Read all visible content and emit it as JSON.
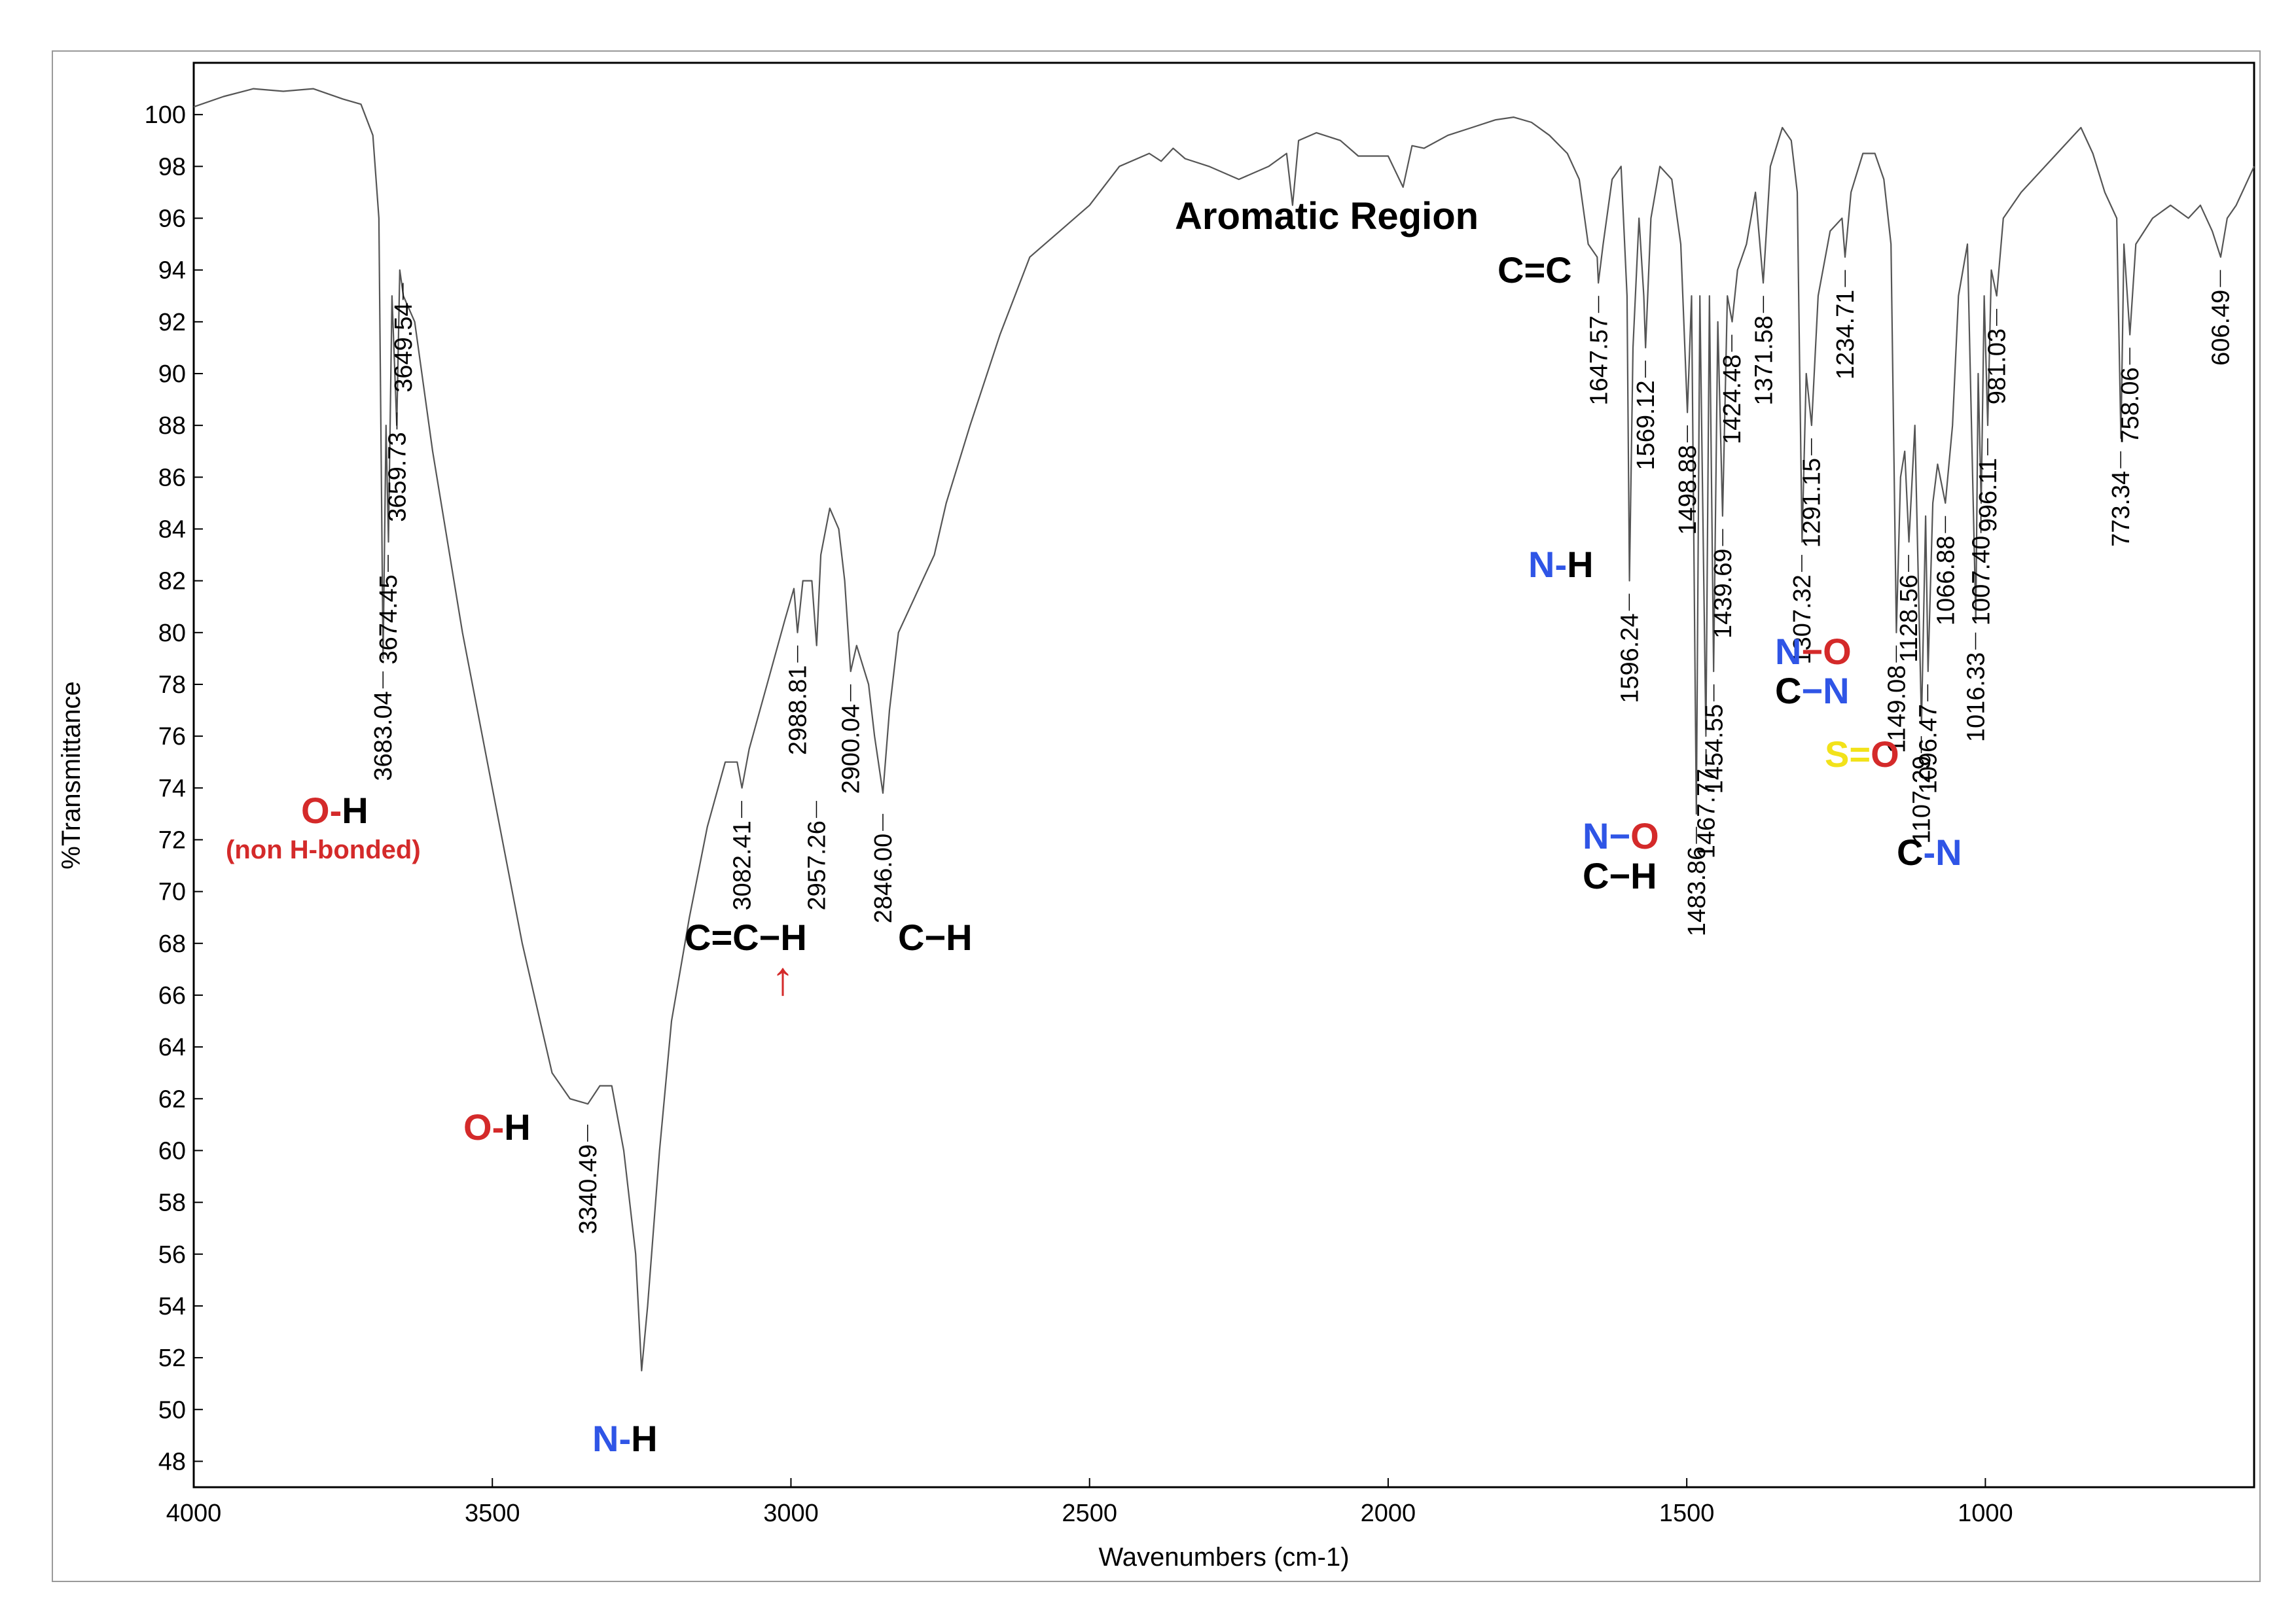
{
  "chart_data": {
    "type": "line",
    "title": "",
    "xlabel": "Wavenumbers (cm-1)",
    "ylabel": "%Transmittance",
    "xlim": [
      4000,
      550
    ],
    "ylim": [
      47,
      102
    ],
    "x_reversed": true,
    "grid": false,
    "x_ticks": [
      4000,
      3500,
      3000,
      2500,
      2000,
      1500,
      1000
    ],
    "y_ticks": [
      48,
      50,
      52,
      54,
      56,
      58,
      60,
      62,
      64,
      66,
      68,
      70,
      72,
      74,
      76,
      78,
      80,
      82,
      84,
      86,
      88,
      90,
      92,
      94,
      96,
      98,
      100
    ],
    "colors": {
      "spectrum": "#555555",
      "red": "#d42a2a",
      "blue": "#2f55e6",
      "yellow": "#f2e21a",
      "black": "#000000"
    },
    "series": [
      {
        "points": [
          [
            4000,
            100.3
          ],
          [
            3950,
            100.7
          ],
          [
            3900,
            101.0
          ],
          [
            3850,
            100.9
          ],
          [
            3800,
            101.0
          ],
          [
            3750,
            100.6
          ],
          [
            3720,
            100.4
          ],
          [
            3700,
            99.2
          ],
          [
            3690,
            96.0
          ],
          [
            3683,
            79.0
          ],
          [
            3678,
            88.0
          ],
          [
            3674,
            83.5
          ],
          [
            3668,
            93.0
          ],
          [
            3660,
            88.0
          ],
          [
            3655,
            94.0
          ],
          [
            3649,
            93.0
          ],
          [
            3630,
            92.0
          ],
          [
            3600,
            87.0
          ],
          [
            3550,
            80.0
          ],
          [
            3500,
            74.0
          ],
          [
            3450,
            68.0
          ],
          [
            3420,
            65.0
          ],
          [
            3400,
            63.0
          ],
          [
            3370,
            62.0
          ],
          [
            3340,
            61.8
          ],
          [
            3320,
            62.5
          ],
          [
            3300,
            62.5
          ],
          [
            3280,
            60.0
          ],
          [
            3260,
            56.0
          ],
          [
            3250,
            51.5
          ],
          [
            3240,
            54.0
          ],
          [
            3220,
            60.0
          ],
          [
            3200,
            65.0
          ],
          [
            3170,
            69.0
          ],
          [
            3140,
            72.5
          ],
          [
            3110,
            75.0
          ],
          [
            3090,
            75.0
          ],
          [
            3082,
            74.0
          ],
          [
            3070,
            75.5
          ],
          [
            3040,
            78.0
          ],
          [
            3010,
            80.5
          ],
          [
            2995,
            81.7
          ],
          [
            2989,
            80.0
          ],
          [
            2980,
            82.0
          ],
          [
            2965,
            82.0
          ],
          [
            2957,
            79.5
          ],
          [
            2950,
            83.0
          ],
          [
            2935,
            84.8
          ],
          [
            2920,
            84.0
          ],
          [
            2910,
            82.0
          ],
          [
            2900,
            78.5
          ],
          [
            2890,
            79.5
          ],
          [
            2870,
            78.0
          ],
          [
            2860,
            76.0
          ],
          [
            2846,
            73.8
          ],
          [
            2835,
            77.0
          ],
          [
            2820,
            80.0
          ],
          [
            2800,
            81.0
          ],
          [
            2780,
            82.0
          ],
          [
            2760,
            83.0
          ],
          [
            2740,
            85.0
          ],
          [
            2700,
            88.0
          ],
          [
            2650,
            91.5
          ],
          [
            2600,
            94.5
          ],
          [
            2550,
            95.5
          ],
          [
            2500,
            96.5
          ],
          [
            2450,
            98.0
          ],
          [
            2400,
            98.5
          ],
          [
            2380,
            98.2
          ],
          [
            2360,
            98.7
          ],
          [
            2340,
            98.3
          ],
          [
            2300,
            98.0
          ],
          [
            2250,
            97.5
          ],
          [
            2200,
            98.0
          ],
          [
            2170,
            98.5
          ],
          [
            2160,
            96.5
          ],
          [
            2150,
            99.0
          ],
          [
            2120,
            99.3
          ],
          [
            2080,
            99.0
          ],
          [
            2050,
            98.4
          ],
          [
            2000,
            98.4
          ],
          [
            1975,
            97.2
          ],
          [
            1960,
            98.8
          ],
          [
            1940,
            98.7
          ],
          [
            1900,
            99.2
          ],
          [
            1860,
            99.5
          ],
          [
            1820,
            99.8
          ],
          [
            1790,
            99.9
          ],
          [
            1760,
            99.7
          ],
          [
            1730,
            99.2
          ],
          [
            1700,
            98.5
          ],
          [
            1680,
            97.5
          ],
          [
            1665,
            95.0
          ],
          [
            1650,
            94.5
          ],
          [
            1648,
            93.5
          ],
          [
            1640,
            95.0
          ],
          [
            1625,
            97.5
          ],
          [
            1610,
            98.0
          ],
          [
            1600,
            93.0
          ],
          [
            1596,
            82.0
          ],
          [
            1590,
            91.0
          ],
          [
            1580,
            96.0
          ],
          [
            1572,
            93.0
          ],
          [
            1569,
            91.0
          ],
          [
            1560,
            96.0
          ],
          [
            1545,
            98.0
          ],
          [
            1525,
            97.5
          ],
          [
            1510,
            95.0
          ],
          [
            1499,
            88.5
          ],
          [
            1492,
            93.0
          ],
          [
            1484,
            73.0
          ],
          [
            1478,
            93.0
          ],
          [
            1468,
            76.0
          ],
          [
            1462,
            93.0
          ],
          [
            1455,
            78.5
          ],
          [
            1448,
            92.0
          ],
          [
            1440,
            84.5
          ],
          [
            1432,
            93.0
          ],
          [
            1424,
            92.0
          ],
          [
            1415,
            94.0
          ],
          [
            1400,
            95.0
          ],
          [
            1385,
            97.0
          ],
          [
            1372,
            93.5
          ],
          [
            1360,
            98.0
          ],
          [
            1340,
            99.5
          ],
          [
            1325,
            99.0
          ],
          [
            1315,
            97.0
          ],
          [
            1307,
            83.5
          ],
          [
            1300,
            90.0
          ],
          [
            1291,
            88.0
          ],
          [
            1280,
            93.0
          ],
          [
            1260,
            95.5
          ],
          [
            1240,
            96.0
          ],
          [
            1235,
            94.5
          ],
          [
            1225,
            97.0
          ],
          [
            1205,
            98.5
          ],
          [
            1185,
            98.5
          ],
          [
            1170,
            97.5
          ],
          [
            1158,
            95.0
          ],
          [
            1149,
            80.0
          ],
          [
            1142,
            86.0
          ],
          [
            1135,
            87.0
          ],
          [
            1128,
            83.5
          ],
          [
            1118,
            88.0
          ],
          [
            1107,
            76.5
          ],
          [
            1100,
            84.5
          ],
          [
            1096,
            78.5
          ],
          [
            1088,
            85.0
          ],
          [
            1080,
            86.5
          ],
          [
            1067,
            85.0
          ],
          [
            1055,
            88.0
          ],
          [
            1045,
            93.0
          ],
          [
            1030,
            95.0
          ],
          [
            1016,
            80.5
          ],
          [
            1012,
            90.0
          ],
          [
            1007,
            85.0
          ],
          [
            1002,
            93.0
          ],
          [
            996,
            88.0
          ],
          [
            990,
            94.0
          ],
          [
            981,
            93.0
          ],
          [
            970,
            96.0
          ],
          [
            940,
            97.0
          ],
          [
            900,
            98.0
          ],
          [
            860,
            99.0
          ],
          [
            840,
            99.5
          ],
          [
            820,
            98.5
          ],
          [
            800,
            97.0
          ],
          [
            780,
            96.0
          ],
          [
            773,
            87.5
          ],
          [
            768,
            95.0
          ],
          [
            758,
            91.5
          ],
          [
            748,
            95.0
          ],
          [
            720,
            96.0
          ],
          [
            690,
            96.5
          ],
          [
            660,
            96.0
          ],
          [
            640,
            96.5
          ],
          [
            620,
            95.5
          ],
          [
            606,
            94.5
          ],
          [
            595,
            96.0
          ],
          [
            580,
            96.5
          ],
          [
            560,
            97.5
          ],
          [
            550,
            98.0
          ]
        ]
      }
    ],
    "peak_labels": [
      {
        "x": 3683.04,
        "text": "3683.04",
        "y_top": 78.5
      },
      {
        "x": 3674.45,
        "text": "3674.45",
        "y_top": 83.0
      },
      {
        "x": 3659.73,
        "text": "3659.73",
        "y_top": 88.5
      },
      {
        "x": 3649.54,
        "text": "3649.54",
        "y_top": 93.5
      },
      {
        "x": 3340.49,
        "text": "3340.49",
        "y_top": 61.0
      },
      {
        "x": 3082.41,
        "text": "3082.41",
        "y_top": 73.5
      },
      {
        "x": 2988.81,
        "text": "2988.81",
        "y_top": 79.5
      },
      {
        "x": 2957.26,
        "text": "2957.26",
        "y_top": 73.5
      },
      {
        "x": 2900.04,
        "text": "2900.04",
        "y_top": 78.0
      },
      {
        "x": 2846.0,
        "text": "2846.00",
        "y_top": 73.0
      },
      {
        "x": 1647.57,
        "text": "1647.57",
        "y_top": 93.0
      },
      {
        "x": 1596.24,
        "text": "1596.24",
        "y_top": 81.5
      },
      {
        "x": 1569.12,
        "text": "1569.12",
        "y_top": 90.5
      },
      {
        "x": 1498.88,
        "text": "1498.88",
        "y_top": 88.0
      },
      {
        "x": 1483.86,
        "text": "1483.86",
        "y_top": 72.5
      },
      {
        "x": 1467.77,
        "text": "1467.77",
        "y_top": 75.5
      },
      {
        "x": 1454.55,
        "text": "1454.55",
        "y_top": 78.0
      },
      {
        "x": 1439.69,
        "text": "1439.69",
        "y_top": 84.0
      },
      {
        "x": 1424.48,
        "text": "1424.48",
        "y_top": 91.5
      },
      {
        "x": 1371.58,
        "text": "1371.58",
        "y_top": 93.0
      },
      {
        "x": 1307.32,
        "text": "1307.32",
        "y_top": 83.0
      },
      {
        "x": 1291.15,
        "text": "1291.15",
        "y_top": 87.5
      },
      {
        "x": 1234.71,
        "text": "1234.71",
        "y_top": 94.0
      },
      {
        "x": 1149.08,
        "text": "1149.08",
        "y_top": 79.5
      },
      {
        "x": 1128.56,
        "text": "1128.56",
        "y_top": 83.0
      },
      {
        "x": 1107.29,
        "text": "1107.29",
        "y_top": 76.0
      },
      {
        "x": 1096.47,
        "text": "1096.47",
        "y_top": 78.0
      },
      {
        "x": 1066.88,
        "text": "1066.88",
        "y_top": 84.5
      },
      {
        "x": 1016.33,
        "text": "1016.33",
        "y_top": 80.0
      },
      {
        "x": 1007.4,
        "text": "1007.40",
        "y_top": 84.5
      },
      {
        "x": 996.11,
        "text": "996.11",
        "y_top": 87.5
      },
      {
        "x": 981.03,
        "text": "981.03",
        "y_top": 92.5
      },
      {
        "x": 773.34,
        "text": "773.34",
        "y_top": 87.0
      },
      {
        "x": 758.06,
        "text": "758.06",
        "y_top": 91.0
      },
      {
        "x": 606.49,
        "text": "606.49",
        "y_top": 94.0
      }
    ],
    "annotations": {
      "region": "Aromatic Region",
      "oh_free_sub": "(non H-bonded)",
      "chars": {
        "O": "O",
        "H": "H",
        "N": "N",
        "C": "C",
        "S": "S",
        "dash": "−",
        "short_dash": "-",
        "eq": "=",
        "arrow": "↑"
      }
    }
  }
}
